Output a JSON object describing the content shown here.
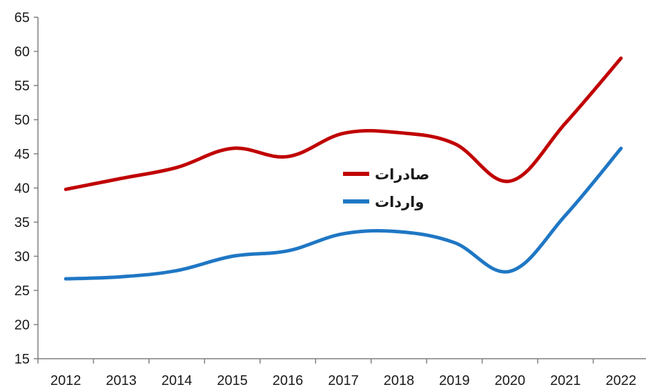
{
  "chart_data": {
    "type": "line",
    "title": "",
    "xlabel": "",
    "ylabel": "",
    "categories": [
      "2012",
      "2013",
      "2014",
      "2015",
      "2016",
      "2017",
      "2018",
      "2019",
      "2020",
      "2021",
      "2022"
    ],
    "ylim": [
      15,
      65
    ],
    "yticks": [
      15,
      20,
      25,
      30,
      35,
      40,
      45,
      50,
      55,
      60,
      65
    ],
    "grid": false,
    "legend_position": "center",
    "series": [
      {
        "name": "صادرات",
        "color": "#c00000",
        "values": [
          39.8,
          41.4,
          43.0,
          45.8,
          44.6,
          48.0,
          48.1,
          46.5,
          41.0,
          49.5,
          59.0
        ]
      },
      {
        "name": "واردات",
        "color": "#1f77c4",
        "values": [
          26.7,
          27.0,
          27.9,
          30.0,
          30.8,
          33.3,
          33.6,
          32.0,
          27.8,
          36.0,
          45.8
        ]
      }
    ]
  }
}
